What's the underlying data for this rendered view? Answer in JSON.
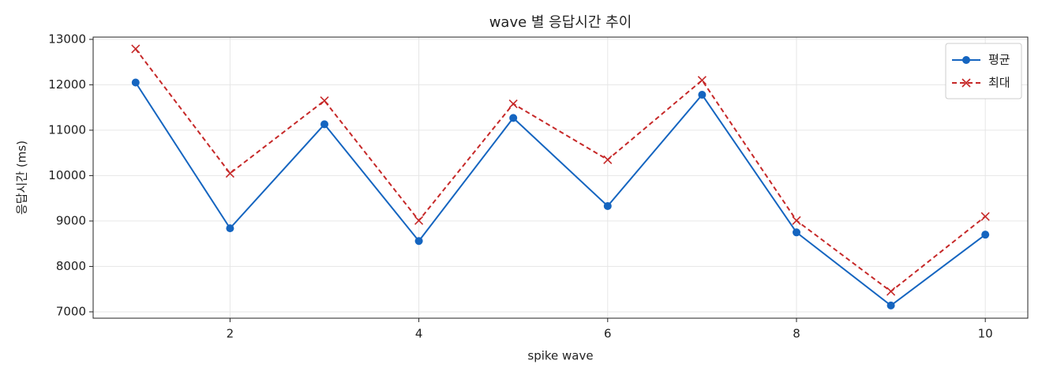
{
  "chart_data": {
    "type": "line",
    "title": "wave 별 응답시간 추이",
    "x_label": "spike wave",
    "y_label": "응답시간 (ms)",
    "x": [
      1,
      2,
      3,
      4,
      5,
      6,
      7,
      8,
      9,
      10
    ],
    "series": [
      {
        "name": "평균",
        "color": "#1565c0",
        "marker": "o",
        "dash": false,
        "values": [
          12050,
          8840,
          11130,
          8560,
          11270,
          9330,
          11780,
          8750,
          7140,
          8700
        ]
      },
      {
        "name": "최대",
        "color": "#c62828",
        "marker": "x",
        "dash": true,
        "values": [
          12790,
          10050,
          11650,
          9010,
          11580,
          10350,
          12100,
          9010,
          7450,
          9100
        ]
      }
    ],
    "xlim": [
      0.55,
      10.45
    ],
    "xticks": [
      2,
      4,
      6,
      8,
      10
    ],
    "ylim": [
      6860,
      13050
    ],
    "yticks": [
      7000,
      8000,
      9000,
      10000,
      11000,
      12000,
      13000
    ],
    "grid": true,
    "legend": "upper right"
  }
}
